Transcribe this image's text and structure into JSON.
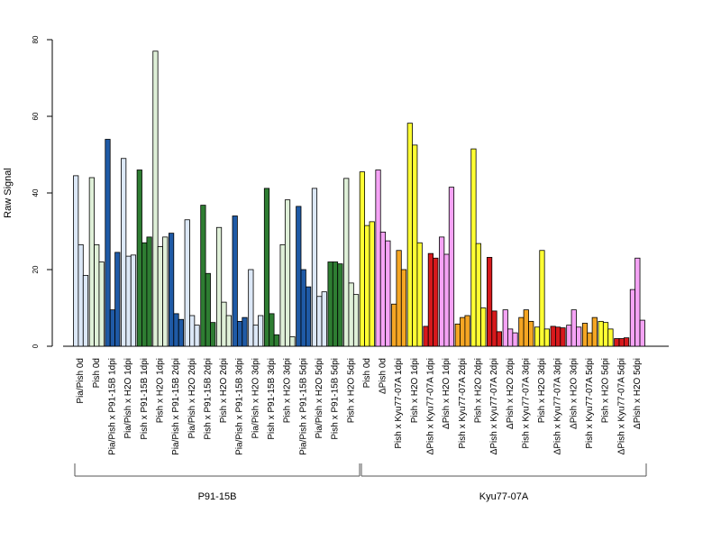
{
  "chart_data": {
    "type": "bar",
    "ylabel": "Raw Signal",
    "ylim": [
      0,
      80
    ],
    "y_ticks": [
      0,
      20,
      40,
      60,
      80
    ],
    "grid": false,
    "legend": "none",
    "colors": {
      "lightblue": "#dce8f7",
      "darkblue": "#1f5aa6",
      "lightgreen": "#dff0d8",
      "darkgreen": "#2e7d32",
      "yellow": "#ffff33",
      "pink": "#f5a3f5",
      "orange": "#f5a623",
      "red": "#d7191c",
      "white": "#ffffff"
    },
    "categories": [
      {
        "label": "Pia/Pish 0d",
        "color": "lightblue",
        "values": [
          44.5,
          26.5,
          18.5
        ]
      },
      {
        "label": "Pish 0d",
        "color": "lightgreen",
        "values": [
          44,
          26.5,
          22
        ]
      },
      {
        "label": "Pia/Pish x P91-15B 1dpi",
        "color": "darkblue",
        "values": [
          54,
          9.5,
          24.5
        ]
      },
      {
        "label": "Pia/Pish x H2O 1dpi",
        "color": "lightblue",
        "values": [
          49,
          23.5,
          23.8
        ]
      },
      {
        "label": "Pish x P91-15B 1dpi",
        "color": "darkgreen",
        "values": [
          46,
          27,
          28.5
        ]
      },
      {
        "label": "Pish x H2O 1dpi",
        "color": "lightgreen",
        "values": [
          77,
          26,
          28.5
        ]
      },
      {
        "label": "Pia/Pish x P91-15B 2dpi",
        "color": "darkblue",
        "values": [
          29.5,
          8.5,
          7
        ]
      },
      {
        "label": "Pia/Pish x H2O 2dpi",
        "color": "lightblue",
        "values": [
          33,
          8,
          5.5
        ]
      },
      {
        "label": "Pish x P91-15B 2dpi",
        "color": "darkgreen",
        "values": [
          36.8,
          19,
          6.2
        ]
      },
      {
        "label": "Pish x H2O 2dpi",
        "color": "lightgreen",
        "values": [
          31,
          11.5,
          8
        ]
      },
      {
        "label": "Pia/Pish x P91-15B 3dpi",
        "color": "darkblue",
        "values": [
          34,
          6.5,
          7.5
        ]
      },
      {
        "label": "Pia/Pish x H2O 3dpi",
        "color": "lightblue",
        "values": [
          20,
          5.5,
          8
        ]
      },
      {
        "label": "Pish x P91-15B 3dpi",
        "color": "darkgreen",
        "values": [
          41.2,
          8.5,
          3
        ]
      },
      {
        "label": "Pish x H2O 3dpi",
        "color": "lightgreen",
        "values": [
          26.5,
          38.2,
          2.5
        ]
      },
      {
        "label": "Pia/Pish x P91-15B 5dpi",
        "color": "darkblue",
        "values": [
          36.5,
          20,
          15.5
        ]
      },
      {
        "label": "Pia/Pish x H2O 5dpi",
        "color": "lightblue",
        "values": [
          41.2,
          13,
          14.2
        ]
      },
      {
        "label": "Pish x P91-15B 5dpi",
        "color": "darkgreen",
        "values": [
          22,
          22,
          21.5
        ]
      },
      {
        "label": "Pish x H2O 5dpi",
        "color": "lightgreen",
        "values": [
          43.8,
          16.5,
          13.5
        ]
      },
      {
        "label": "Pish 0d",
        "color": "yellow",
        "values": [
          45.5,
          31.5,
          32.5
        ]
      },
      {
        "label": "ΔPish 0d",
        "color": "pink",
        "values": [
          46,
          29.8,
          27.5
        ]
      },
      {
        "label": "Pish x Kyu77-07A 1dpi",
        "color": "orange",
        "values": [
          11,
          25,
          20
        ]
      },
      {
        "label": "Pish x H2O 1dpi",
        "color": "yellow",
        "values": [
          58.2,
          52.5,
          27
        ]
      },
      {
        "label": "ΔPish x Kyu77-07A 1dpi",
        "color": "red",
        "values": [
          5.2,
          24.2,
          23
        ]
      },
      {
        "label": "ΔPish x H2O 1dpi",
        "color": "pink",
        "values": [
          28.5,
          24,
          41.5
        ]
      },
      {
        "label": "Pish x Kyu77-07A 2dpi",
        "color": "orange",
        "values": [
          5.8,
          7.5,
          8
        ]
      },
      {
        "label": "Pish x H2O 2dpi",
        "color": "yellow",
        "values": [
          51.5,
          26.8,
          10
        ]
      },
      {
        "label": "ΔPish x Kyu77-07A 2dpi",
        "color": "red",
        "values": [
          23.2,
          9.2,
          3.8
        ]
      },
      {
        "label": "ΔPish x H2O 2dpi",
        "color": "pink",
        "values": [
          9.5,
          4.5,
          3.5
        ]
      },
      {
        "label": "Pish x Kyu77-07A 3dpi",
        "color": "orange",
        "values": [
          7.5,
          9.5,
          6.5
        ]
      },
      {
        "label": "Pish x H2O 3dpi",
        "color": "yellow",
        "values": [
          5,
          25,
          4.5
        ]
      },
      {
        "label": "ΔPish x Kyu77-07A 3dpi",
        "color": "red",
        "values": [
          5.2,
          5,
          4.8
        ]
      },
      {
        "label": "ΔPish x H2O 3dpi",
        "color": "pink",
        "values": [
          5.5,
          9.5,
          5
        ]
      },
      {
        "label": "Pish x Kyu77-07A 5dpi",
        "color": "orange",
        "values": [
          6,
          3.5,
          7.5
        ]
      },
      {
        "label": "Pish x H2O 5dpi",
        "color": "yellow",
        "values": [
          6.5,
          6.2,
          4.5
        ]
      },
      {
        "label": "ΔPish x Kyu77-07A 5dpi",
        "color": "red",
        "values": [
          2,
          2,
          2.2
        ]
      },
      {
        "label": "ΔPish x H2O 5dpi",
        "color": "pink",
        "values": [
          14.8,
          23,
          6.8
        ]
      }
    ],
    "groups": [
      {
        "label": "P91-15B",
        "from": 0,
        "to": 17
      },
      {
        "label": "Kyu77-07A",
        "from": 18,
        "to": 35
      }
    ]
  }
}
